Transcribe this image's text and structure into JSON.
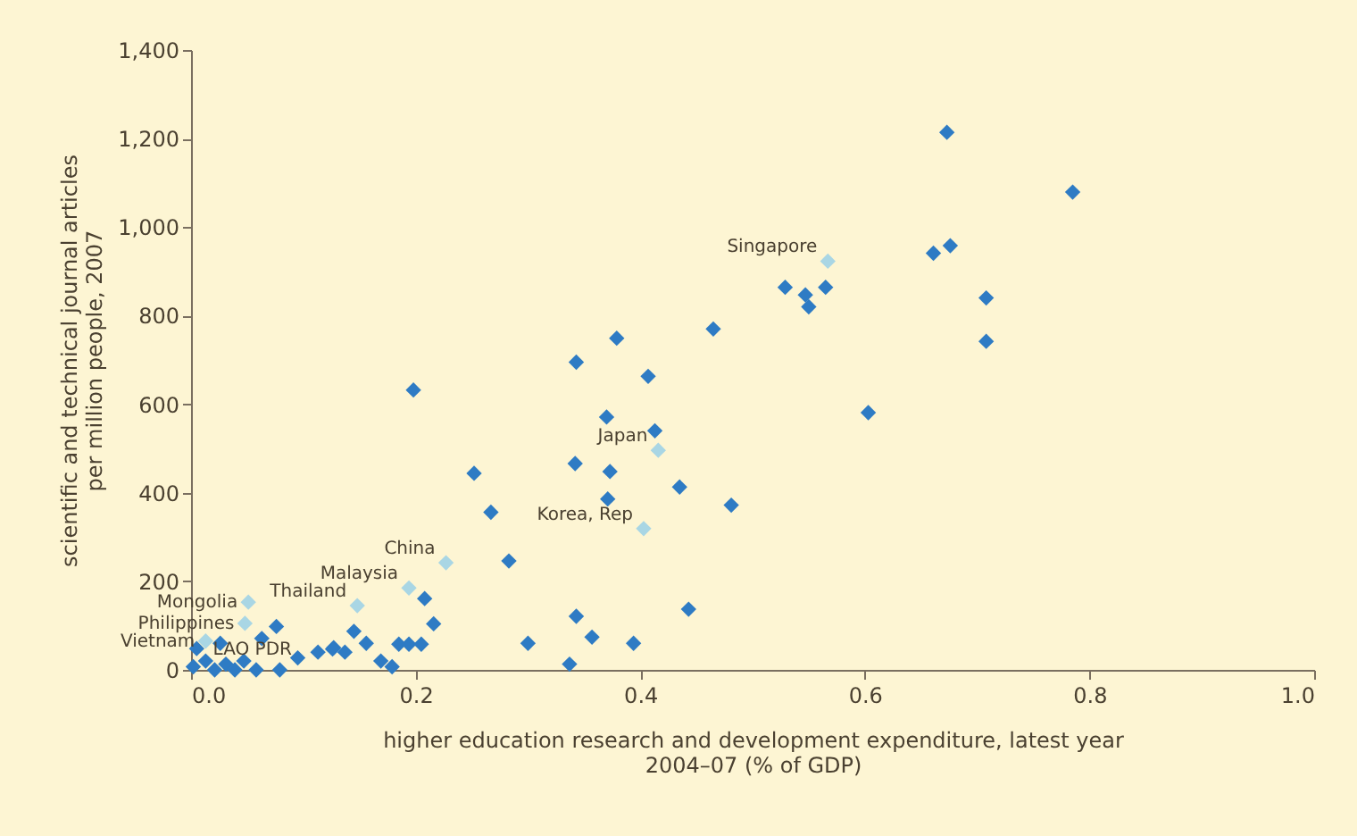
{
  "chart_data": {
    "type": "scatter",
    "xlabel": "higher education research and development expenditure, latest year\n2004–07 (% of GDP)",
    "ylabel": "scientific and technical journal articles\nper million people, 2007",
    "xlim": [
      0,
      1.0
    ],
    "xticks": [
      {
        "value": 0,
        "label": "0.0"
      },
      0.2,
      0.4,
      0.6,
      0.8,
      {
        "value": 1.0,
        "label": "1.0"
      }
    ],
    "ylim": [
      0,
      1400
    ],
    "yticks": [
      0,
      200,
      400,
      600,
      800,
      {
        "value": 1000,
        "label": "1,000"
      },
      {
        "value": 1200,
        "label": "1,200"
      },
      {
        "value": 1400,
        "label": "1,400"
      }
    ],
    "grid": false,
    "marker": "diamond",
    "series": [
      {
        "color": "#2e7bc4",
        "x": [
          0.198,
          0.343,
          0.379,
          0.465,
          0.407,
          0.37,
          0.413,
          0.603,
          0.252,
          0.342,
          0.373,
          0.371,
          0.435,
          0.481,
          0.267,
          0.283,
          0.208,
          0.216,
          0.343,
          0.443,
          0.357,
          0.3,
          0.394,
          0.337,
          0.185,
          0.194,
          0.205,
          0.169,
          0.179,
          0.127,
          0.137,
          0.145,
          0.156,
          0.673,
          0.785,
          0.529,
          0.547,
          0.55,
          0.565,
          0.661,
          0.676,
          0.708,
          0.708,
          0.076,
          0.026,
          0.063,
          0.005,
          0.013,
          0.031,
          0.047,
          0.058,
          0.079,
          0.095,
          0.113,
          0.126,
          0.002,
          0.021,
          0.039
        ],
        "values": [
          632,
          695,
          749,
          770,
          663,
          571,
          540,
          581,
          444,
          466,
          448,
          386,
          413,
          372,
          356,
          246,
          161,
          104,
          121,
          137,
          74,
          60,
          60,
          13,
          58,
          58,
          58,
          20,
          7,
          50,
          40,
          87,
          60,
          1214,
          1079,
          864,
          847,
          820,
          864,
          941,
          958,
          840,
          742,
          98,
          60,
          71,
          48,
          20,
          13,
          20,
          0,
          0,
          27,
          40,
          47,
          7,
          0,
          0
        ]
      },
      {
        "color": "#a9d6e4",
        "x": [
          0.567,
          0.416,
          0.403,
          0.227,
          0.194,
          0.148,
          0.051,
          0.048,
          0.013
        ],
        "values": [
          923,
          496,
          319,
          242,
          185,
          145,
          153,
          105,
          65
        ]
      }
    ],
    "annotations": [
      {
        "text": "Singapore",
        "x": 0.567,
        "y": 923
      },
      {
        "text": "Japan",
        "x": 0.416,
        "y": 496
      },
      {
        "text": "Korea, Rep",
        "x": 0.403,
        "y": 319
      },
      {
        "text": "China",
        "x": 0.227,
        "y": 242
      },
      {
        "text": "Malaysia",
        "x": 0.194,
        "y": 185
      },
      {
        "text": "Thailand",
        "x": 0.148,
        "y": 145
      },
      {
        "text": "Mongolia",
        "x": 0.051,
        "y": 153
      },
      {
        "text": "Philippines",
        "x": 0.048,
        "y": 105
      },
      {
        "text": "Vietnam",
        "x": 0.013,
        "y": 65
      },
      {
        "text": "LAO PDR",
        "x": 0.01,
        "y": 15
      }
    ]
  }
}
